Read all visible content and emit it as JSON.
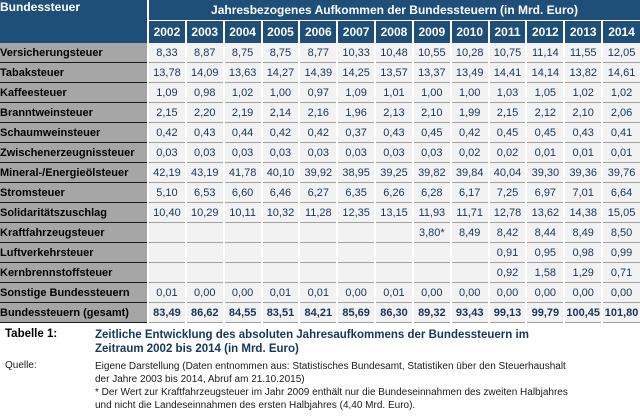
{
  "colors": {
    "header_bg": "#1F4E79",
    "label_col_bg": "#A6A6A6",
    "cell_bg": "#F2F2F2",
    "caption_text": "#17365D",
    "header_text": "#FFFFFF"
  },
  "chart_data": {
    "type": "table",
    "title": "Jahresbezogenes Aufkommen der Bundessteuern (in Mrd. Euro)",
    "row_header": "Bundessteuer",
    "columns": [
      "2002",
      "2003",
      "2004",
      "2005",
      "2006",
      "2007",
      "2008",
      "2009",
      "2010",
      "2011",
      "2012",
      "2013",
      "2014"
    ],
    "rows": [
      {
        "label": "Versicherungsteuer",
        "values": [
          "8,33",
          "8,87",
          "8,75",
          "8,75",
          "8,77",
          "10,33",
          "10,48",
          "10,55",
          "10,28",
          "10,75",
          "11,14",
          "11,55",
          "12,05"
        ]
      },
      {
        "label": "Tabaksteuer",
        "values": [
          "13,78",
          "14,09",
          "13,63",
          "14,27",
          "14,39",
          "14,25",
          "13,57",
          "13,37",
          "13,49",
          "14,41",
          "14,14",
          "13,82",
          "14,61"
        ]
      },
      {
        "label": "Kaffeesteuer",
        "values": [
          "1,09",
          "0,98",
          "1,02",
          "1,00",
          "0,97",
          "1,09",
          "1,01",
          "1,00",
          "1,00",
          "1,03",
          "1,05",
          "1,02",
          "1,02"
        ]
      },
      {
        "label": "Branntweinsteuer",
        "values": [
          "2,15",
          "2,20",
          "2,19",
          "2,14",
          "2,16",
          "1,96",
          "2,13",
          "2,10",
          "1,99",
          "2,15",
          "2,12",
          "2,10",
          "2,06"
        ]
      },
      {
        "label": "Schaumweinsteuer",
        "values": [
          "0,42",
          "0,43",
          "0,44",
          "0,42",
          "0,42",
          "0,37",
          "0,43",
          "0,45",
          "0,42",
          "0,45",
          "0,45",
          "0,43",
          "0,41"
        ]
      },
      {
        "label": "Zwischenerzeugnissteuer",
        "values": [
          "0,03",
          "0,03",
          "0,03",
          "0,03",
          "0,03",
          "0,03",
          "0,03",
          "0,03",
          "0,02",
          "0,02",
          "0,01",
          "0,01",
          "0,01"
        ]
      },
      {
        "label": "Mineral-/Energieölsteuer",
        "values": [
          "42,19",
          "43,19",
          "41,78",
          "40,10",
          "39,92",
          "38,95",
          "39,25",
          "39,82",
          "39,84",
          "40,04",
          "39,30",
          "39,36",
          "39,76"
        ]
      },
      {
        "label": "Stromsteuer",
        "values": [
          "5,10",
          "6,53",
          "6,60",
          "6,46",
          "6,27",
          "6,35",
          "6,26",
          "6,28",
          "6,17",
          "7,25",
          "6,97",
          "7,01",
          "6,64"
        ]
      },
      {
        "label": "Solidaritätszuschlag",
        "values": [
          "10,40",
          "10,29",
          "10,11",
          "10,32",
          "11,28",
          "12,35",
          "13,15",
          "11,93",
          "11,71",
          "12,78",
          "13,62",
          "14,38",
          "15,05"
        ]
      },
      {
        "label": "Kraftfahrzeugsteuer",
        "values": [
          "",
          "",
          "",
          "",
          "",
          "",
          "",
          "3,80*",
          "8,49",
          "8,42",
          "8,44",
          "8,49",
          "8,50"
        ]
      },
      {
        "label": "Luftverkehrsteuer",
        "values": [
          "",
          "",
          "",
          "",
          "",
          "",
          "",
          "",
          "",
          "0,91",
          "0,95",
          "0,98",
          "0,99"
        ]
      },
      {
        "label": "Kernbrennstoffsteuer",
        "values": [
          "",
          "",
          "",
          "",
          "",
          "",
          "",
          "",
          "",
          "0,92",
          "1,58",
          "1,29",
          "0,71"
        ]
      },
      {
        "label": "Sonstige Bundessteuern",
        "values": [
          "0,01",
          "0,00",
          "0,00",
          "0,01",
          "0,01",
          "0,00",
          "0,01",
          "0,00",
          "0,00",
          "0,00",
          "0,00",
          "0,00",
          "0,00"
        ]
      },
      {
        "label": "Bundessteuern (gesamt)",
        "values": [
          "83,49",
          "86,62",
          "84,55",
          "83,51",
          "84,21",
          "85,69",
          "86,30",
          "89,32",
          "93,43",
          "99,13",
          "99,79",
          "100,45",
          "101,80"
        ],
        "is_total": true
      }
    ]
  },
  "footer": {
    "table_label": "Tabelle 1:",
    "caption_line1": "Zeitliche Entwicklung des absoluten Jahresaufkommens der Bundessteuern im",
    "caption_line2": "Zeitraum 2002 bis 2014 (in Mrd. Euro)",
    "source_label": "Quelle:",
    "source_line1": "Eigene Darstellung (Daten entnommen aus: Statistisches Bundesamt, Statistiken über den Steuerhaushalt",
    "source_line2": "der Jahre 2003 bis 2014, Abruf am 21.10.2015)",
    "note_line1": "* Der Wert zur Kraftfahrzeugsteuer im Jahr 2009 enthält nur die Bundeseinnahmen des zweiten Halbjahres",
    "note_line2": "und nicht die Landeseinnahmen des ersten Halbjahres (4,40 Mrd. Euro)."
  }
}
